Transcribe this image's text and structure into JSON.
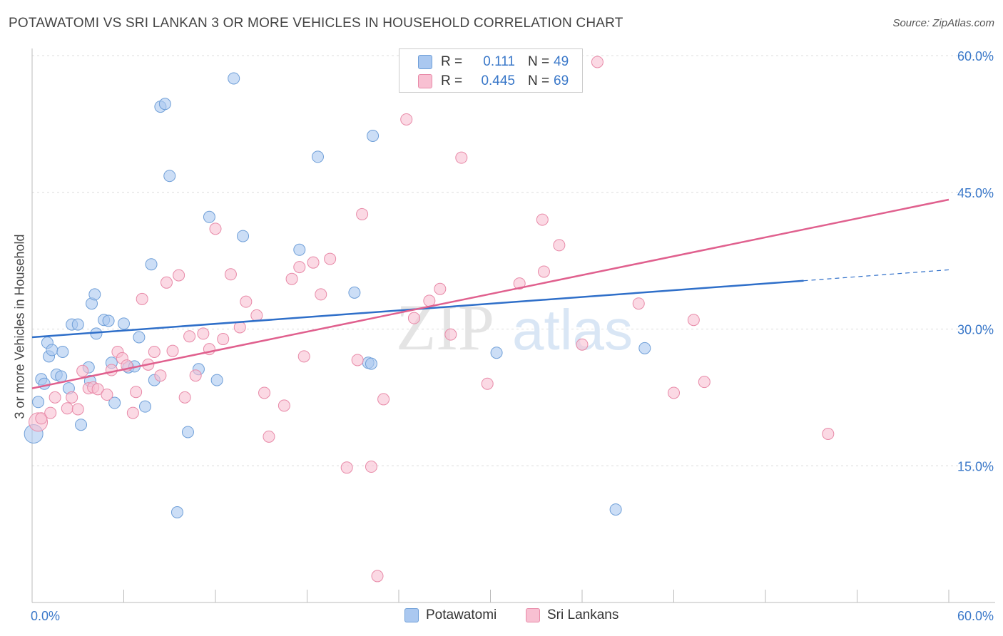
{
  "header": {
    "title": "POTAWATOMI VS SRI LANKAN 3 OR MORE VEHICLES IN HOUSEHOLD CORRELATION CHART",
    "source": "Source: ZipAtlas.com"
  },
  "legend": {
    "rows": [
      {
        "r_label": "R =",
        "r_value": "0.111",
        "n_label": "N =",
        "n_value": "49",
        "color": "#aac8f0",
        "border": "#6f9fd8"
      },
      {
        "r_label": "R =",
        "r_value": "0.445",
        "n_label": "N =",
        "n_value": "69",
        "color": "#f8c0d2",
        "border": "#e88aa8"
      }
    ]
  },
  "bottom_legend": {
    "items": [
      {
        "label": "Potawatomi",
        "color": "#aac8f0",
        "border": "#6f9fd8"
      },
      {
        "label": "Sri Lankans",
        "color": "#f8c0d2",
        "border": "#e88aa8"
      }
    ]
  },
  "watermark": {
    "zip": "ZIP",
    "atlas": "atlas"
  },
  "chart_data": {
    "type": "scatter",
    "title": "POTAWATOMI VS SRI LANKAN 3 OR MORE VEHICLES IN HOUSEHOLD CORRELATION CHART",
    "xlabel": "",
    "ylabel": "3 or more Vehicles in Household",
    "xlim": [
      0,
      60
    ],
    "ylim": [
      0,
      60
    ],
    "x_tick_labels": [
      "0.0%",
      "60.0%"
    ],
    "y_tick_labels": [
      "15.0%",
      "30.0%",
      "45.0%",
      "60.0%"
    ],
    "y_ticks": [
      15,
      30,
      45,
      60
    ],
    "series": [
      {
        "name": "Potawatomi",
        "color": "#aac8f0",
        "stroke": "#6f9fd8",
        "line_color": "#2f6fc9",
        "trend": {
          "x": [
            0,
            50.5
          ],
          "y": [
            29.1,
            35.3
          ],
          "dash_to": {
            "x": 60,
            "y": 36.5
          }
        },
        "x": [
          0.1,
          0.4,
          0.6,
          0.8,
          1.0,
          1.1,
          1.3,
          1.6,
          1.9,
          2.0,
          2.4,
          2.6,
          3.0,
          3.2,
          3.7,
          3.8,
          3.9,
          4.1,
          4.2,
          4.7,
          5.0,
          5.2,
          5.4,
          6.0,
          6.3,
          6.7,
          7.0,
          7.4,
          7.8,
          8.0,
          8.4,
          8.7,
          9.0,
          9.5,
          10.2,
          10.9,
          11.6,
          12.1,
          13.2,
          13.8,
          17.5,
          18.7,
          21.1,
          22.0,
          22.3,
          22.2,
          30.4,
          38.2,
          40.1
        ],
        "y": [
          18.5,
          22.0,
          24.5,
          24.0,
          28.5,
          27.0,
          27.7,
          25.0,
          24.8,
          27.5,
          23.5,
          30.5,
          30.5,
          19.5,
          25.8,
          24.3,
          32.8,
          33.8,
          29.5,
          31.0,
          30.9,
          26.3,
          21.9,
          30.6,
          25.8,
          25.9,
          29.1,
          21.5,
          37.1,
          24.4,
          54.4,
          54.7,
          46.8,
          9.9,
          18.7,
          25.6,
          42.3,
          24.4,
          57.5,
          40.2,
          38.7,
          48.9,
          34.0,
          26.3,
          51.2,
          26.2,
          27.4,
          10.2,
          27.9
        ]
      },
      {
        "name": "Sri Lankans",
        "color": "#f8c0d2",
        "stroke": "#e88aa8",
        "line_color": "#e0608e",
        "trend": {
          "x": [
            0,
            60
          ],
          "y": [
            23.5,
            44.2
          ]
        },
        "x": [
          0.4,
          0.6,
          1.2,
          1.5,
          2.3,
          2.6,
          3.0,
          3.3,
          3.7,
          4.0,
          4.3,
          4.9,
          5.2,
          5.6,
          5.9,
          6.2,
          6.6,
          6.8,
          7.2,
          7.6,
          8.0,
          8.4,
          8.8,
          9.2,
          9.6,
          10.0,
          10.3,
          10.7,
          11.2,
          11.6,
          12.0,
          12.5,
          13.0,
          13.6,
          14.0,
          14.7,
          15.2,
          15.5,
          16.5,
          17.0,
          17.5,
          17.8,
          18.4,
          18.9,
          19.5,
          20.6,
          21.3,
          21.6,
          22.2,
          22.6,
          23.0,
          24.5,
          25.0,
          26.0,
          26.7,
          27.4,
          28.1,
          29.8,
          31.9,
          33.4,
          33.5,
          34.5,
          36.0,
          37.0,
          39.7,
          43.3,
          44.0,
          52.1,
          42.0
        ],
        "y": [
          19.8,
          20.2,
          20.8,
          22.5,
          21.3,
          22.5,
          21.2,
          25.4,
          23.5,
          23.6,
          23.4,
          22.8,
          25.5,
          27.5,
          26.8,
          26.0,
          20.8,
          23.1,
          33.3,
          26.1,
          27.5,
          24.9,
          35.1,
          27.6,
          35.9,
          22.5,
          29.2,
          24.9,
          29.5,
          27.8,
          41.0,
          28.9,
          36.0,
          30.2,
          33.0,
          31.5,
          23.0,
          18.2,
          21.6,
          35.5,
          36.8,
          27.0,
          37.3,
          33.8,
          37.7,
          14.8,
          26.6,
          42.6,
          14.9,
          2.9,
          22.3,
          53.0,
          31.2,
          33.1,
          34.4,
          29.4,
          48.8,
          24.0,
          35.0,
          42.0,
          36.3,
          39.2,
          28.3,
          59.3,
          32.8,
          31.0,
          24.2,
          18.5,
          23.0
        ]
      }
    ]
  }
}
